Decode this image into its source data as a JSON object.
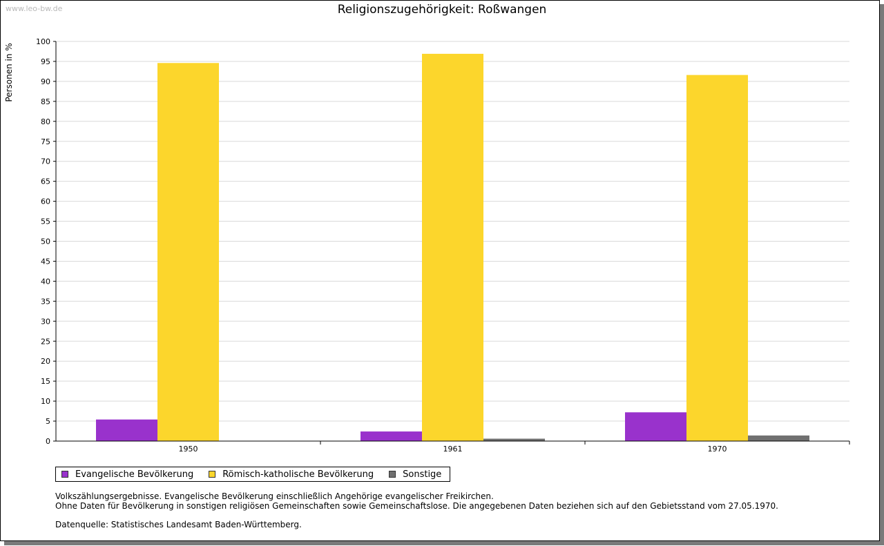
{
  "watermark": "www.leo-bw.de",
  "colors": {
    "evangelisch": "#9932cc",
    "katholisch": "#fcd62c",
    "sonstige": "#707070",
    "grid": "#d9d9d9"
  },
  "notes": {
    "line1": "Volkszählungsergebnisse. Evangelische Bevölkerung einschließlich Angehörige evangelischer Freikirchen.",
    "line2": "Ohne Daten für Bevölkerung in sonstigen religiösen Gemeinschaften sowie Gemeinschaftslose. Die angegebenen Daten beziehen sich auf den Gebietsstand vom 27.05.1970.",
    "source": "Datenquelle: Statistisches Landesamt Baden-Württemberg."
  },
  "chart_data": {
    "type": "bar",
    "title": "Religionszugehörigkeit: Roßwangen",
    "xlabel": "",
    "ylabel": "Personen in %",
    "ylim": [
      0,
      100
    ],
    "ytick_step": 5,
    "grid": true,
    "legend_position": "bottom-left",
    "categories": [
      "1950",
      "1961",
      "1970"
    ],
    "series": [
      {
        "name": "Evangelische Bevölkerung",
        "color": "#9932cc",
        "values": [
          5.4,
          2.4,
          7.2
        ]
      },
      {
        "name": "Römisch-katholische Bevölkerung",
        "color": "#fcd62c",
        "values": [
          94.6,
          96.9,
          91.6
        ]
      },
      {
        "name": "Sonstige",
        "color": "#707070",
        "values": [
          0,
          0.6,
          1.4
        ]
      }
    ]
  }
}
